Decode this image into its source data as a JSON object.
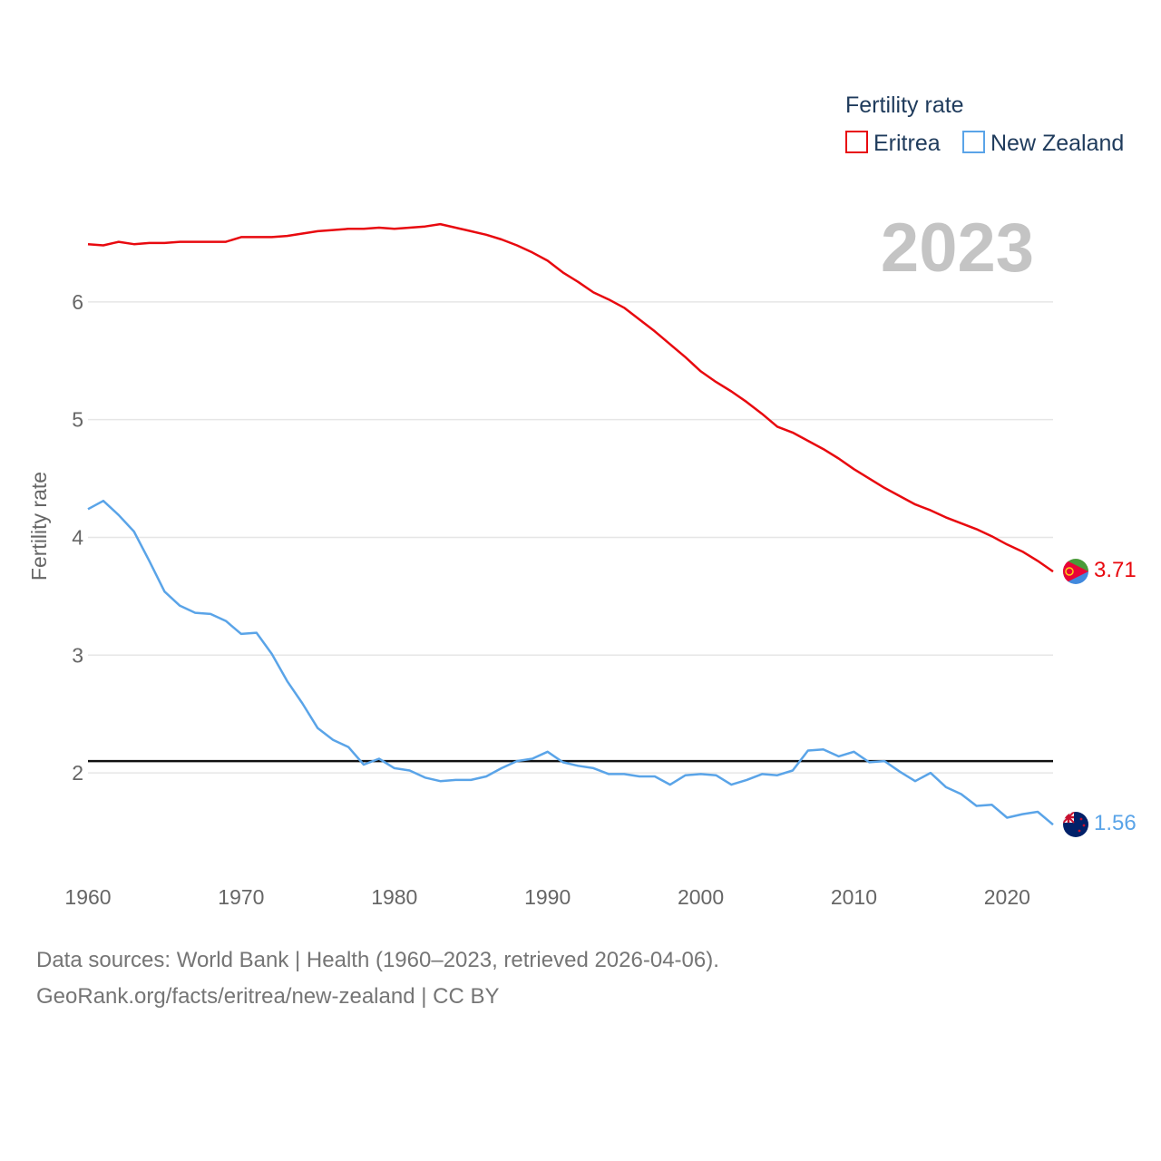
{
  "legend": {
    "title": "Fertility rate",
    "items": [
      {
        "label": "Eritrea",
        "color": "#e8090f"
      },
      {
        "label": "New Zealand",
        "color": "#5aa4e8"
      }
    ]
  },
  "year_display": "2023",
  "footer": {
    "line1": "Data sources: World Bank | Health (1960–2023, retrieved 2026-04-06).",
    "line2": "GeoRank.org/facts/eritrea/new-zealand | CC BY"
  },
  "chart_data": {
    "type": "line",
    "title": "Fertility rate",
    "xlabel": "",
    "ylabel": "Fertility rate",
    "xlim": [
      1960,
      2023
    ],
    "ylim": [
      1.3,
      7.0
    ],
    "yticks": [
      2,
      3,
      4,
      5,
      6
    ],
    "xticks": [
      1960,
      1970,
      1980,
      1990,
      2000,
      2010,
      2020
    ],
    "reference_line": 2.1,
    "x": [
      1960,
      1961,
      1962,
      1963,
      1964,
      1965,
      1966,
      1967,
      1968,
      1969,
      1970,
      1971,
      1972,
      1973,
      1974,
      1975,
      1976,
      1977,
      1978,
      1979,
      1980,
      1981,
      1982,
      1983,
      1984,
      1985,
      1986,
      1987,
      1988,
      1989,
      1990,
      1991,
      1992,
      1993,
      1994,
      1995,
      1996,
      1997,
      1998,
      1999,
      2000,
      2001,
      2002,
      2003,
      2004,
      2005,
      2006,
      2007,
      2008,
      2009,
      2010,
      2011,
      2012,
      2013,
      2014,
      2015,
      2016,
      2017,
      2018,
      2019,
      2020,
      2021,
      2022,
      2023
    ],
    "series": [
      {
        "name": "Eritrea",
        "color": "#e8090f",
        "end_label": "3.71",
        "values": [
          6.49,
          6.48,
          6.51,
          6.49,
          6.5,
          6.5,
          6.51,
          6.51,
          6.51,
          6.51,
          6.55,
          6.55,
          6.55,
          6.56,
          6.58,
          6.6,
          6.61,
          6.62,
          6.62,
          6.63,
          6.62,
          6.63,
          6.64,
          6.66,
          6.63,
          6.6,
          6.57,
          6.53,
          6.48,
          6.42,
          6.35,
          6.25,
          6.17,
          6.08,
          6.02,
          5.95,
          5.85,
          5.75,
          5.64,
          5.53,
          5.41,
          5.32,
          5.24,
          5.15,
          5.05,
          4.94,
          4.89,
          4.82,
          4.75,
          4.67,
          4.58,
          4.5,
          4.42,
          4.35,
          4.28,
          4.23,
          4.17,
          4.12,
          4.07,
          4.01,
          3.94,
          3.88,
          3.8,
          3.71
        ]
      },
      {
        "name": "New Zealand",
        "color": "#5aa4e8",
        "end_label": "1.56",
        "values": [
          4.24,
          4.31,
          4.19,
          4.05,
          3.8,
          3.54,
          3.42,
          3.36,
          3.35,
          3.29,
          3.18,
          3.19,
          3.01,
          2.78,
          2.59,
          2.38,
          2.28,
          2.22,
          2.07,
          2.12,
          2.04,
          2.02,
          1.96,
          1.93,
          1.94,
          1.94,
          1.97,
          2.04,
          2.1,
          2.12,
          2.18,
          2.09,
          2.06,
          2.04,
          1.99,
          1.99,
          1.97,
          1.97,
          1.9,
          1.98,
          1.99,
          1.98,
          1.9,
          1.94,
          1.99,
          1.98,
          2.02,
          2.19,
          2.2,
          2.14,
          2.18,
          2.09,
          2.1,
          2.01,
          1.93,
          2.0,
          1.88,
          1.82,
          1.72,
          1.73,
          1.62,
          1.65,
          1.67,
          1.56
        ]
      }
    ]
  }
}
